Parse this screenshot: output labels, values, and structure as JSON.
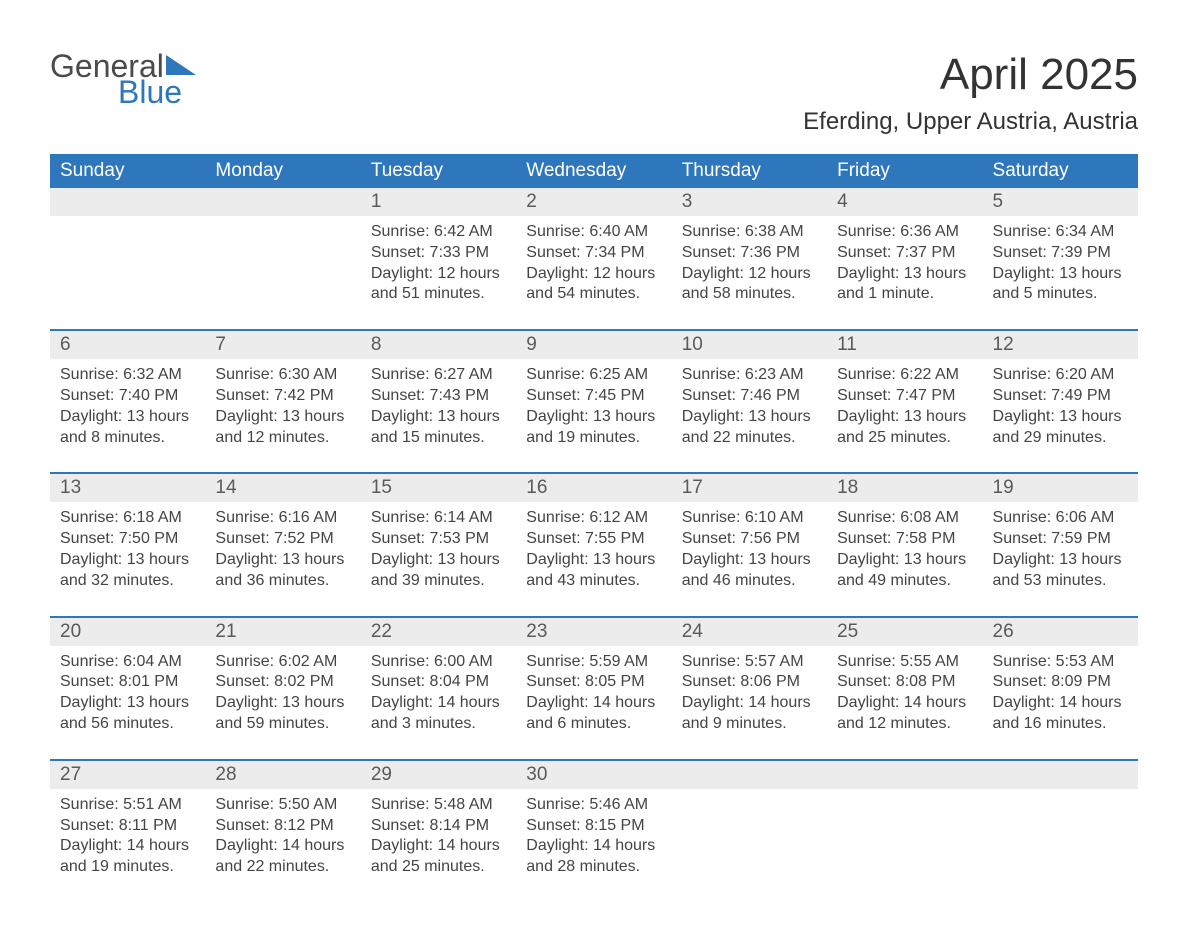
{
  "brand": {
    "general": "General",
    "blue": "Blue",
    "accent": "#2f77bc"
  },
  "title": "April 2025",
  "location": "Eferding, Upper Austria, Austria",
  "colors": {
    "header_bg": "#2f77bc",
    "daynum_bg": "#ececec",
    "text": "#333333",
    "cell_text": "#444444",
    "background": "#ffffff"
  },
  "fonts": {
    "title_size_pt": 33,
    "location_size_pt": 18,
    "dayheader_size_pt": 14,
    "cell_size_pt": 12
  },
  "day_headers": [
    "Sunday",
    "Monday",
    "Tuesday",
    "Wednesday",
    "Thursday",
    "Friday",
    "Saturday"
  ],
  "weeks": [
    [
      {
        "num": "",
        "sunrise": "",
        "sunset": "",
        "daylight": ""
      },
      {
        "num": "",
        "sunrise": "",
        "sunset": "",
        "daylight": ""
      },
      {
        "num": "1",
        "sunrise": "Sunrise: 6:42 AM",
        "sunset": "Sunset: 7:33 PM",
        "daylight": "Daylight: 12 hours and 51 minutes."
      },
      {
        "num": "2",
        "sunrise": "Sunrise: 6:40 AM",
        "sunset": "Sunset: 7:34 PM",
        "daylight": "Daylight: 12 hours and 54 minutes."
      },
      {
        "num": "3",
        "sunrise": "Sunrise: 6:38 AM",
        "sunset": "Sunset: 7:36 PM",
        "daylight": "Daylight: 12 hours and 58 minutes."
      },
      {
        "num": "4",
        "sunrise": "Sunrise: 6:36 AM",
        "sunset": "Sunset: 7:37 PM",
        "daylight": "Daylight: 13 hours and 1 minute."
      },
      {
        "num": "5",
        "sunrise": "Sunrise: 6:34 AM",
        "sunset": "Sunset: 7:39 PM",
        "daylight": "Daylight: 13 hours and 5 minutes."
      }
    ],
    [
      {
        "num": "6",
        "sunrise": "Sunrise: 6:32 AM",
        "sunset": "Sunset: 7:40 PM",
        "daylight": "Daylight: 13 hours and 8 minutes."
      },
      {
        "num": "7",
        "sunrise": "Sunrise: 6:30 AM",
        "sunset": "Sunset: 7:42 PM",
        "daylight": "Daylight: 13 hours and 12 minutes."
      },
      {
        "num": "8",
        "sunrise": "Sunrise: 6:27 AM",
        "sunset": "Sunset: 7:43 PM",
        "daylight": "Daylight: 13 hours and 15 minutes."
      },
      {
        "num": "9",
        "sunrise": "Sunrise: 6:25 AM",
        "sunset": "Sunset: 7:45 PM",
        "daylight": "Daylight: 13 hours and 19 minutes."
      },
      {
        "num": "10",
        "sunrise": "Sunrise: 6:23 AM",
        "sunset": "Sunset: 7:46 PM",
        "daylight": "Daylight: 13 hours and 22 minutes."
      },
      {
        "num": "11",
        "sunrise": "Sunrise: 6:22 AM",
        "sunset": "Sunset: 7:47 PM",
        "daylight": "Daylight: 13 hours and 25 minutes."
      },
      {
        "num": "12",
        "sunrise": "Sunrise: 6:20 AM",
        "sunset": "Sunset: 7:49 PM",
        "daylight": "Daylight: 13 hours and 29 minutes."
      }
    ],
    [
      {
        "num": "13",
        "sunrise": "Sunrise: 6:18 AM",
        "sunset": "Sunset: 7:50 PM",
        "daylight": "Daylight: 13 hours and 32 minutes."
      },
      {
        "num": "14",
        "sunrise": "Sunrise: 6:16 AM",
        "sunset": "Sunset: 7:52 PM",
        "daylight": "Daylight: 13 hours and 36 minutes."
      },
      {
        "num": "15",
        "sunrise": "Sunrise: 6:14 AM",
        "sunset": "Sunset: 7:53 PM",
        "daylight": "Daylight: 13 hours and 39 minutes."
      },
      {
        "num": "16",
        "sunrise": "Sunrise: 6:12 AM",
        "sunset": "Sunset: 7:55 PM",
        "daylight": "Daylight: 13 hours and 43 minutes."
      },
      {
        "num": "17",
        "sunrise": "Sunrise: 6:10 AM",
        "sunset": "Sunset: 7:56 PM",
        "daylight": "Daylight: 13 hours and 46 minutes."
      },
      {
        "num": "18",
        "sunrise": "Sunrise: 6:08 AM",
        "sunset": "Sunset: 7:58 PM",
        "daylight": "Daylight: 13 hours and 49 minutes."
      },
      {
        "num": "19",
        "sunrise": "Sunrise: 6:06 AM",
        "sunset": "Sunset: 7:59 PM",
        "daylight": "Daylight: 13 hours and 53 minutes."
      }
    ],
    [
      {
        "num": "20",
        "sunrise": "Sunrise: 6:04 AM",
        "sunset": "Sunset: 8:01 PM",
        "daylight": "Daylight: 13 hours and 56 minutes."
      },
      {
        "num": "21",
        "sunrise": "Sunrise: 6:02 AM",
        "sunset": "Sunset: 8:02 PM",
        "daylight": "Daylight: 13 hours and 59 minutes."
      },
      {
        "num": "22",
        "sunrise": "Sunrise: 6:00 AM",
        "sunset": "Sunset: 8:04 PM",
        "daylight": "Daylight: 14 hours and 3 minutes."
      },
      {
        "num": "23",
        "sunrise": "Sunrise: 5:59 AM",
        "sunset": "Sunset: 8:05 PM",
        "daylight": "Daylight: 14 hours and 6 minutes."
      },
      {
        "num": "24",
        "sunrise": "Sunrise: 5:57 AM",
        "sunset": "Sunset: 8:06 PM",
        "daylight": "Daylight: 14 hours and 9 minutes."
      },
      {
        "num": "25",
        "sunrise": "Sunrise: 5:55 AM",
        "sunset": "Sunset: 8:08 PM",
        "daylight": "Daylight: 14 hours and 12 minutes."
      },
      {
        "num": "26",
        "sunrise": "Sunrise: 5:53 AM",
        "sunset": "Sunset: 8:09 PM",
        "daylight": "Daylight: 14 hours and 16 minutes."
      }
    ],
    [
      {
        "num": "27",
        "sunrise": "Sunrise: 5:51 AM",
        "sunset": "Sunset: 8:11 PM",
        "daylight": "Daylight: 14 hours and 19 minutes."
      },
      {
        "num": "28",
        "sunrise": "Sunrise: 5:50 AM",
        "sunset": "Sunset: 8:12 PM",
        "daylight": "Daylight: 14 hours and 22 minutes."
      },
      {
        "num": "29",
        "sunrise": "Sunrise: 5:48 AM",
        "sunset": "Sunset: 8:14 PM",
        "daylight": "Daylight: 14 hours and 25 minutes."
      },
      {
        "num": "30",
        "sunrise": "Sunrise: 5:46 AM",
        "sunset": "Sunset: 8:15 PM",
        "daylight": "Daylight: 14 hours and 28 minutes."
      },
      {
        "num": "",
        "sunrise": "",
        "sunset": "",
        "daylight": ""
      },
      {
        "num": "",
        "sunrise": "",
        "sunset": "",
        "daylight": ""
      },
      {
        "num": "",
        "sunrise": "",
        "sunset": "",
        "daylight": ""
      }
    ]
  ]
}
